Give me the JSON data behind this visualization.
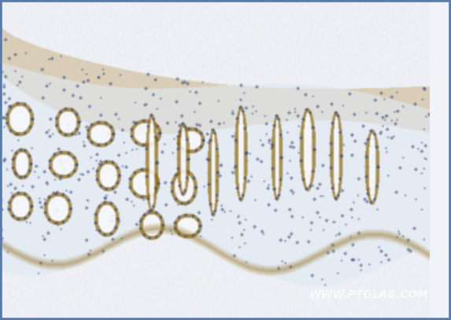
{
  "fig_width": 5.73,
  "fig_height": 4.07,
  "dpi": 100,
  "border_color": "#5a7aaa",
  "border_linewidth": 4,
  "background_color": "#e8eef5",
  "watermark_text": "WWW.PTGLAB.COM",
  "watermark_color": "#cccccc",
  "watermark_alpha": 0.7,
  "watermark_fontsize": 10,
  "tissue_bg_color": "#dce8f0",
  "stroma_color": "#c8d8e8",
  "dab_color": "#8B6914",
  "hematoxylin_color": "#3a4a7a",
  "slide_bg": "#f0f4f8"
}
